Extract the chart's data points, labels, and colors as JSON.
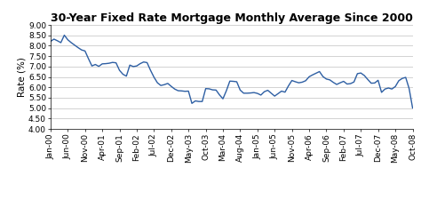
{
  "title": "30-Year Fixed Rate Mortgage Monthly Average Since 2000",
  "ylabel": "Rate (%)",
  "ylim": [
    4.0,
    9.0
  ],
  "yticks": [
    4.0,
    4.5,
    5.0,
    5.5,
    6.0,
    6.5,
    7.0,
    7.5,
    8.0,
    8.5,
    9.0
  ],
  "line_color": "#2E5FA3",
  "background_color": "#ffffff",
  "x_labels": [
    "Jan-00",
    "Jun-00",
    "Nov-00",
    "Apr-01",
    "Sep-01",
    "Feb-02",
    "Jul-02",
    "Dec-02",
    "May-03",
    "Oct-03",
    "Mar-04",
    "Aug-04",
    "Jan-05",
    "Jun-05",
    "Nov-05",
    "Apr-06",
    "Sep-06",
    "Feb-07",
    "Jul-07",
    "Dec-07",
    "May-08",
    "Oct-08"
  ],
  "title_fontsize": 9,
  "ylabel_fontsize": 7.5,
  "tick_fontsize": 6.5,
  "line_width": 1.0,
  "monthly_values": [
    8.21,
    8.32,
    8.24,
    8.15,
    8.51,
    8.29,
    8.15,
    8.03,
    7.91,
    7.8,
    7.75,
    7.38,
    7.03,
    7.1,
    7.01,
    7.13,
    7.14,
    7.16,
    7.2,
    7.18,
    6.82,
    6.63,
    6.54,
    7.07,
    7.0,
    7.03,
    7.14,
    7.22,
    7.19,
    6.82,
    6.49,
    6.22,
    6.09,
    6.13,
    6.19,
    6.05,
    5.92,
    5.84,
    5.83,
    5.81,
    5.82,
    5.23,
    5.35,
    5.32,
    5.32,
    5.94,
    5.93,
    5.88,
    5.87,
    5.64,
    5.45,
    5.84,
    6.3,
    6.29,
    6.27,
    5.87,
    5.72,
    5.72,
    5.73,
    5.75,
    5.71,
    5.63,
    5.79,
    5.86,
    5.72,
    5.58,
    5.7,
    5.82,
    5.77,
    6.07,
    6.33,
    6.27,
    6.22,
    6.25,
    6.32,
    6.51,
    6.6,
    6.68,
    6.76,
    6.52,
    6.4,
    6.36,
    6.24,
    6.14,
    6.22,
    6.29,
    6.16,
    6.18,
    6.26,
    6.66,
    6.69,
    6.57,
    6.38,
    6.2,
    6.21,
    6.34,
    5.76,
    5.92,
    5.97,
    5.92,
    6.04,
    6.32,
    6.43,
    6.48,
    5.94,
    5.01
  ],
  "tick_positions": [
    0,
    5,
    10,
    15,
    20,
    25,
    30,
    35,
    40,
    45,
    50,
    55,
    60,
    65,
    70,
    75,
    80,
    85,
    90,
    95,
    100,
    105
  ]
}
